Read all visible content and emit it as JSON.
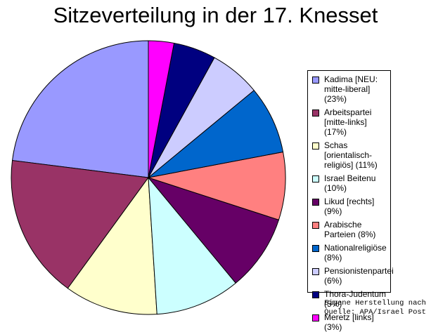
{
  "chart_data": {
    "type": "pie",
    "title": "Sitzeverteilung in der 17. Knesset",
    "slices": [
      {
        "label": "Kadima [NEU: mitte-liberal] (23%)",
        "value": 23,
        "color": "#9999FF"
      },
      {
        "label": "Arbeitspartei [mitte-links] (17%)",
        "value": 17,
        "color": "#993366"
      },
      {
        "label": "Schas [orientalisch-religiös] (11%)",
        "value": 11,
        "color": "#FFFFCC"
      },
      {
        "label": "Israel Beitenu (10%)",
        "value": 10,
        "color": "#CCFFFF"
      },
      {
        "label": "Likud [rechts] (9%)",
        "value": 9,
        "color": "#660066"
      },
      {
        "label": "Arabische Parteien (8%)",
        "value": 8,
        "color": "#FF8080"
      },
      {
        "label": "Nationalreligiöse (8%)",
        "value": 8,
        "color": "#0066CC"
      },
      {
        "label": "Pensionistenpartei (6%)",
        "value": 6,
        "color": "#CCCCFF"
      },
      {
        "label": "Thora-Judentum (5%)",
        "value": 5,
        "color": "#000080"
      },
      {
        "label": "Meretz [links] (3%)",
        "value": 3,
        "color": "#FF00FF"
      }
    ],
    "start": "12 o'clock",
    "direction": "counterclockwise",
    "legend_position": "right"
  },
  "source_note": "Eigene Herstellung nach\nQuelle: APA/Israel Post"
}
